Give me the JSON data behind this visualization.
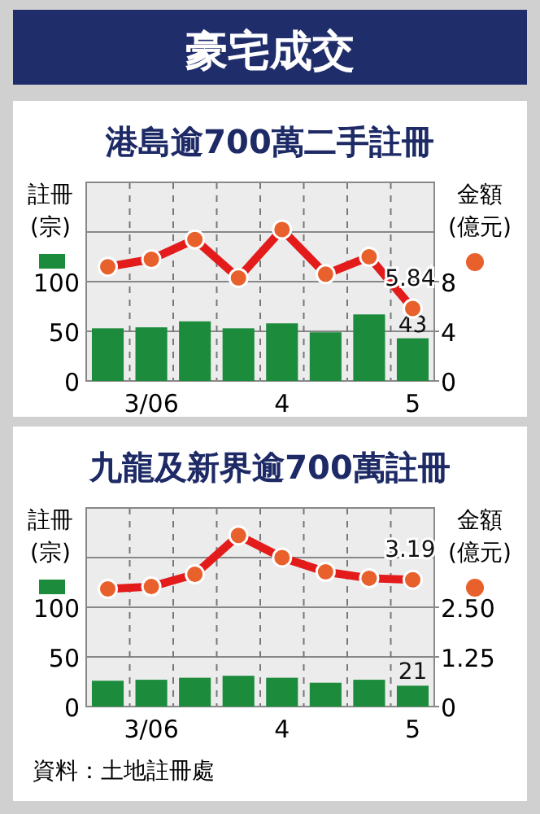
{
  "chart_data": [
    {
      "type": "bar",
      "title": "港島逾700萬二手註冊",
      "annotations": [
        "豪宅成交"
      ],
      "ylabel": "註冊(宗)",
      "y2label": "金額(億元)",
      "categories": [
        null,
        "3/06",
        null,
        null,
        "4",
        null,
        null,
        "5"
      ],
      "series": [
        {
          "type": "bar",
          "color": "#1c8c3c",
          "values": [
            53,
            54,
            60,
            53,
            58,
            49,
            67,
            43
          ],
          "value_labels": [
            null,
            null,
            null,
            null,
            null,
            null,
            null,
            "43"
          ]
        },
        {
          "type": "line",
          "axis": "y2",
          "color": "#e31b1b",
          "values": [
            9.2,
            9.8,
            11.4,
            8.3,
            12.2,
            8.6,
            10.0,
            5.84
          ],
          "value_labels": [
            null,
            null,
            null,
            null,
            null,
            null,
            null,
            "5.84"
          ]
        }
      ],
      "ylim": [
        0,
        200
      ],
      "yticks": [
        0,
        50,
        100,
        {
          "value": 150,
          "label": null
        }
      ],
      "y2lim": [
        0,
        16
      ],
      "y2ticks": [
        0,
        4,
        8
      ],
      "grid": true,
      "marker": "circle",
      "line_style": "solid"
    },
    {
      "type": "bar",
      "title": "九龍及新界逾700萬註冊",
      "annotations": [
        "資料：土地註冊處"
      ],
      "ylabel": "註冊(宗)",
      "y2label": "金額(億元)",
      "categories": [
        null,
        "3/06",
        null,
        null,
        "4",
        null,
        null,
        "5"
      ],
      "series": [
        {
          "type": "bar",
          "color": "#1c8c3c",
          "values": [
            26,
            27,
            29,
            31,
            29,
            24,
            27,
            21
          ],
          "value_labels": [
            null,
            null,
            null,
            null,
            null,
            null,
            null,
            "21"
          ]
        },
        {
          "type": "line",
          "axis": "y2",
          "color": "#e31b1b",
          "values": [
            2.96,
            3.02,
            3.33,
            4.31,
            3.75,
            3.39,
            3.23,
            3.19
          ],
          "value_labels": [
            null,
            null,
            null,
            null,
            null,
            null,
            null,
            "3.19"
          ]
        }
      ],
      "ylim": [
        0,
        200
      ],
      "yticks": [
        0,
        50,
        100,
        {
          "value": 150,
          "label": null
        }
      ],
      "y2lim": [
        0,
        5
      ],
      "y2ticks": [
        0,
        1.25,
        {
          "value": 2.5,
          "label": "2.50"
        }
      ],
      "grid": true,
      "marker": "circle",
      "line_style": "solid"
    }
  ]
}
